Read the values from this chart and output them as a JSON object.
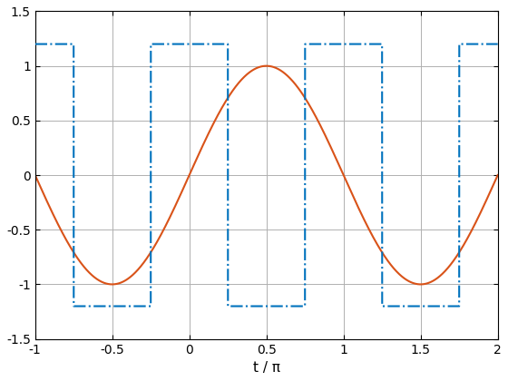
{
  "xlim": [
    -1,
    2
  ],
  "ylim": [
    -1.5,
    1.5
  ],
  "xlabel": "t / π",
  "xticks": [
    -1,
    -0.5,
    0,
    0.5,
    1,
    1.5,
    2
  ],
  "yticks": [
    -1.5,
    -1,
    -0.5,
    0,
    0.5,
    1,
    1.5
  ],
  "sine_color": "#D95319",
  "square_color": "#0072BD",
  "square_amplitude": 1.2,
  "background_color": "#ffffff",
  "grid_color": "#b0b0b0",
  "figsize": [
    5.6,
    4.2
  ],
  "dpi": 100,
  "tick_fontsize": 10,
  "label_fontsize": 11,
  "linewidth": 1.5
}
